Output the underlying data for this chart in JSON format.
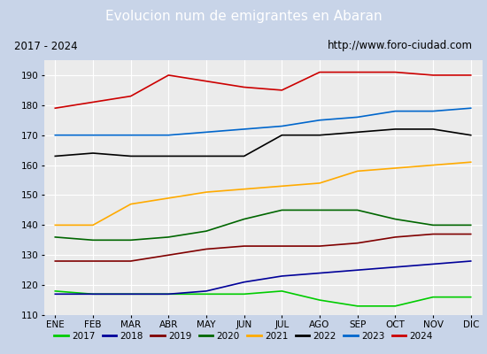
{
  "title": "Evolucion num de emigrantes en Abaran",
  "subtitle_left": "2017 - 2024",
  "subtitle_right": "http://www.foro-ciudad.com",
  "title_bg_color": "#4472c4",
  "title_text_color": "#ffffff",
  "plot_bg_color": "#ebebeb",
  "outer_bg_color": "#c8d4e8",
  "ylim": [
    110,
    195
  ],
  "yticks": [
    110,
    120,
    130,
    140,
    150,
    160,
    170,
    180,
    190
  ],
  "xtick_labels": [
    "ENE",
    "FEB",
    "MAR",
    "ABR",
    "MAY",
    "JUN",
    "JUL",
    "AGO",
    "SEP",
    "OCT",
    "NOV",
    "DIC"
  ],
  "series": {
    "2017": {
      "color": "#00cc00",
      "data": [
        118,
        117,
        117,
        117,
        117,
        117,
        118,
        115,
        113,
        113,
        116,
        116
      ]
    },
    "2018": {
      "color": "#000099",
      "data": [
        117,
        117,
        117,
        117,
        118,
        121,
        123,
        124,
        125,
        126,
        127,
        128
      ]
    },
    "2019": {
      "color": "#800000",
      "data": [
        128,
        128,
        128,
        130,
        132,
        133,
        133,
        133,
        134,
        136,
        137,
        137
      ]
    },
    "2020": {
      "color": "#006600",
      "data": [
        136,
        135,
        135,
        136,
        138,
        142,
        145,
        145,
        145,
        142,
        140,
        140
      ]
    },
    "2021": {
      "color": "#ffaa00",
      "data": [
        140,
        140,
        147,
        149,
        151,
        152,
        153,
        154,
        158,
        159,
        160,
        161
      ]
    },
    "2022": {
      "color": "#000000",
      "data": [
        163,
        164,
        163,
        163,
        163,
        163,
        170,
        170,
        171,
        172,
        172,
        170
      ]
    },
    "2023": {
      "color": "#0066cc",
      "data": [
        170,
        170,
        170,
        170,
        171,
        172,
        173,
        175,
        176,
        178,
        178,
        179
      ]
    },
    "2024": {
      "color": "#cc0000",
      "data": [
        179,
        181,
        183,
        190,
        188,
        186,
        185,
        191,
        191,
        191,
        190,
        190
      ]
    }
  }
}
